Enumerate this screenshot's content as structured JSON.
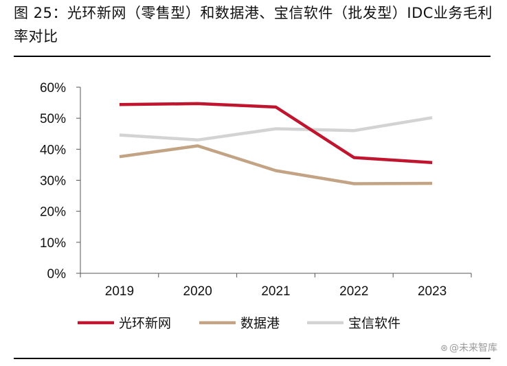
{
  "figure": {
    "title": "图 25：光环新网（零售型）和数据港、宝信软件（批发型）IDC业务毛利率对比"
  },
  "watermark": {
    "icon": "⊛",
    "text": "@未来智库"
  },
  "chart_data": {
    "type": "line",
    "title": "",
    "xlabel": "",
    "ylabel": "",
    "categories": [
      "2019",
      "2020",
      "2021",
      "2022",
      "2023"
    ],
    "ylim": [
      0,
      60
    ],
    "yticks": [
      "0%",
      "10%",
      "20%",
      "30%",
      "40%",
      "50%",
      "60%"
    ],
    "ytick_values": [
      0,
      10,
      20,
      30,
      40,
      50,
      60
    ],
    "unit": "%",
    "grid": false,
    "legend_position": "bottom",
    "series": [
      {
        "name": "光环新网",
        "color": "#C0152F",
        "values": [
          54.4,
          54.7,
          53.6,
          37.3,
          35.7
        ]
      },
      {
        "name": "数据港",
        "color": "#C2A383",
        "values": [
          37.6,
          41.1,
          33.1,
          28.9,
          29.0
        ]
      },
      {
        "name": "宝信软件",
        "color": "#D3D3D3",
        "values": [
          44.6,
          43.0,
          46.6,
          46.0,
          50.2
        ]
      }
    ]
  }
}
